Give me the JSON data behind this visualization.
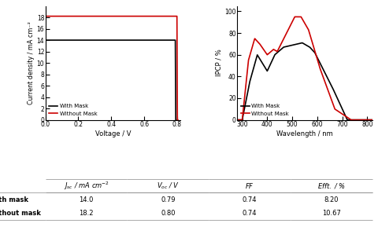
{
  "jv_with_mask": {
    "jsc": 14.0,
    "voc": 0.79,
    "ff": 0.74,
    "pce": 8.2,
    "color": "#000000",
    "label": "With Mask"
  },
  "jv_without_mask": {
    "jsc": 18.2,
    "voc": 0.8,
    "ff": 0.74,
    "pce": 10.67,
    "color": "#cc0000",
    "label": "Without Mask"
  },
  "ipce_with_mask": {
    "color": "#000000",
    "label": "With Mask"
  },
  "ipce_without_mask": {
    "color": "#cc0000",
    "label": "Without Mask"
  },
  "jv_xlabel": "Voltage / V",
  "jv_ylabel": "Current density / mA cm⁻²",
  "ipce_xlabel": "Wavelength / nm",
  "ipce_ylabel": "IPCP / %",
  "table_row1_label": "With mask",
  "table_row2_label": "Without mask",
  "table_row1": [
    "14.0",
    "0.79",
    "0.74",
    "8.20"
  ],
  "table_row2": [
    "18.2",
    "0.80",
    "0.74",
    "10.67"
  ]
}
